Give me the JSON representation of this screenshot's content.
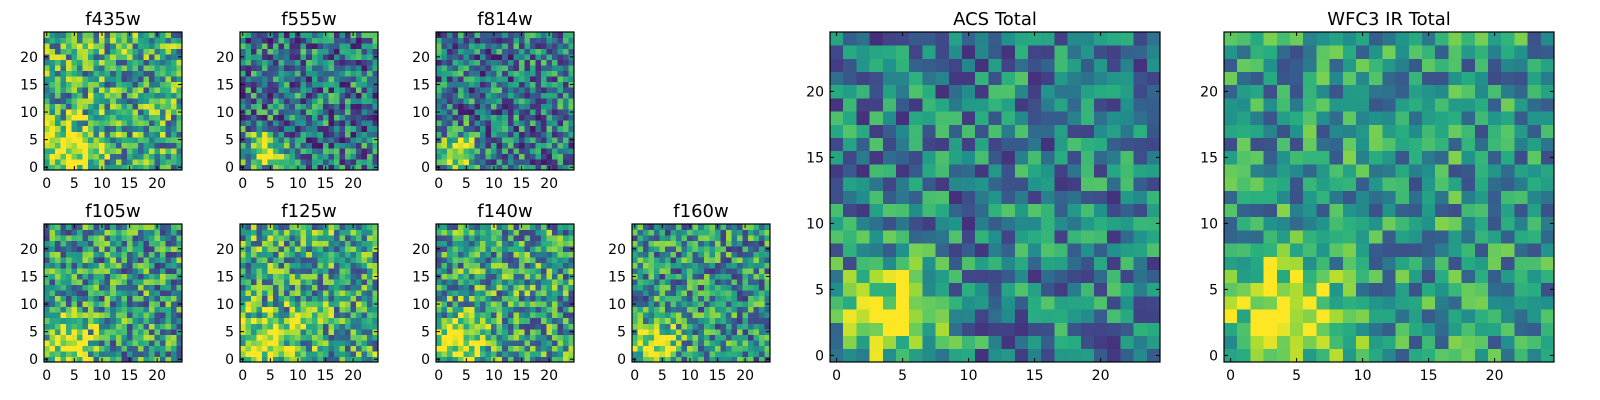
{
  "chart_data": [
    {
      "type": "heatmap",
      "title": "f435w",
      "colormap": "viridis",
      "grid_size": [
        25,
        25
      ],
      "xlim": [
        -0.5,
        24.5
      ],
      "ylim": [
        -0.5,
        24.5
      ],
      "xticks": [
        0,
        5,
        10,
        15,
        20
      ],
      "yticks": [
        0,
        5,
        10,
        15,
        20
      ],
      "feature": {
        "center": [
          4,
          3
        ],
        "sigma": 3.5,
        "amplitude": 0.45
      },
      "base_level": 0.62,
      "noise_amplitude": 0.35,
      "seed": 11
    },
    {
      "type": "heatmap",
      "title": "f555w",
      "colormap": "viridis",
      "grid_size": [
        25,
        25
      ],
      "xlim": [
        -0.5,
        24.5
      ],
      "ylim": [
        -0.5,
        24.5
      ],
      "xticks": [
        0,
        5,
        10,
        15,
        20
      ],
      "yticks": [
        0,
        5,
        10,
        15,
        20
      ],
      "feature": {
        "center": [
          4,
          3
        ],
        "sigma": 2.3,
        "amplitude": 0.65
      },
      "base_level": 0.42,
      "noise_amplitude": 0.35,
      "seed": 22
    },
    {
      "type": "heatmap",
      "title": "f814w",
      "colormap": "viridis",
      "grid_size": [
        25,
        25
      ],
      "xlim": [
        -0.5,
        24.5
      ],
      "ylim": [
        -0.5,
        24.5
      ],
      "xticks": [
        0,
        5,
        10,
        15,
        20
      ],
      "yticks": [
        0,
        5,
        10,
        15,
        20
      ],
      "feature": {
        "center": [
          4,
          3
        ],
        "sigma": 2.3,
        "amplitude": 0.65
      },
      "base_level": 0.42,
      "noise_amplitude": 0.35,
      "seed": 33
    },
    {
      "type": "heatmap",
      "title": "f105w",
      "colormap": "viridis",
      "grid_size": [
        25,
        25
      ],
      "xlim": [
        -0.5,
        24.5
      ],
      "ylim": [
        -0.5,
        24.5
      ],
      "xticks": [
        0,
        5,
        10,
        15,
        20
      ],
      "yticks": [
        0,
        5,
        10,
        15,
        20
      ],
      "feature": {
        "center": [
          4,
          3
        ],
        "sigma": 3.5,
        "amplitude": 0.4
      },
      "base_level": 0.55,
      "noise_amplitude": 0.35,
      "seed": 44
    },
    {
      "type": "heatmap",
      "title": "f125w",
      "colormap": "viridis",
      "grid_size": [
        25,
        25
      ],
      "xlim": [
        -0.5,
        24.5
      ],
      "ylim": [
        -0.5,
        24.5
      ],
      "xticks": [
        0,
        5,
        10,
        15,
        20
      ],
      "yticks": [
        0,
        5,
        10,
        15,
        20
      ],
      "feature": {
        "center": [
          4,
          3
        ],
        "sigma": 3.5,
        "amplitude": 0.35
      },
      "base_level": 0.62,
      "noise_amplitude": 0.35,
      "seed": 55
    },
    {
      "type": "heatmap",
      "title": "f140w",
      "colormap": "viridis",
      "grid_size": [
        25,
        25
      ],
      "xlim": [
        -0.5,
        24.5
      ],
      "ylim": [
        -0.5,
        24.5
      ],
      "xticks": [
        0,
        5,
        10,
        15,
        20
      ],
      "yticks": [
        0,
        5,
        10,
        15,
        20
      ],
      "feature": {
        "center": [
          4,
          3
        ],
        "sigma": 3.5,
        "amplitude": 0.4
      },
      "base_level": 0.58,
      "noise_amplitude": 0.35,
      "seed": 66
    },
    {
      "type": "heatmap",
      "title": "f160w",
      "colormap": "viridis",
      "grid_size": [
        25,
        25
      ],
      "xlim": [
        -0.5,
        24.5
      ],
      "ylim": [
        -0.5,
        24.5
      ],
      "xticks": [
        0,
        5,
        10,
        15,
        20
      ],
      "yticks": [
        0,
        5,
        10,
        15,
        20
      ],
      "feature": {
        "center": [
          4,
          3
        ],
        "sigma": 3.0,
        "amplitude": 0.45
      },
      "base_level": 0.52,
      "noise_amplitude": 0.33,
      "seed": 77
    },
    {
      "type": "heatmap",
      "title": "ACS Total",
      "colormap": "viridis",
      "grid_size": [
        25,
        25
      ],
      "xlim": [
        -0.5,
        24.5
      ],
      "ylim": [
        -0.5,
        24.5
      ],
      "xticks": [
        0,
        5,
        10,
        15,
        20
      ],
      "yticks": [
        0,
        5,
        10,
        15,
        20
      ],
      "feature": {
        "center": [
          4,
          3
        ],
        "sigma": 2.8,
        "amplitude": 0.55
      },
      "base_level": 0.45,
      "noise_amplitude": 0.28,
      "seed": 88
    },
    {
      "type": "heatmap",
      "title": "WFC3 IR Total",
      "colormap": "viridis",
      "grid_size": [
        25,
        25
      ],
      "xlim": [
        -0.5,
        24.5
      ],
      "ylim": [
        -0.5,
        24.5
      ],
      "xticks": [
        0,
        5,
        10,
        15,
        20
      ],
      "yticks": [
        0,
        5,
        10,
        15,
        20
      ],
      "feature": {
        "center": [
          4,
          3
        ],
        "sigma": 3.5,
        "amplitude": 0.42
      },
      "base_level": 0.55,
      "noise_amplitude": 0.26,
      "seed": 99
    }
  ]
}
